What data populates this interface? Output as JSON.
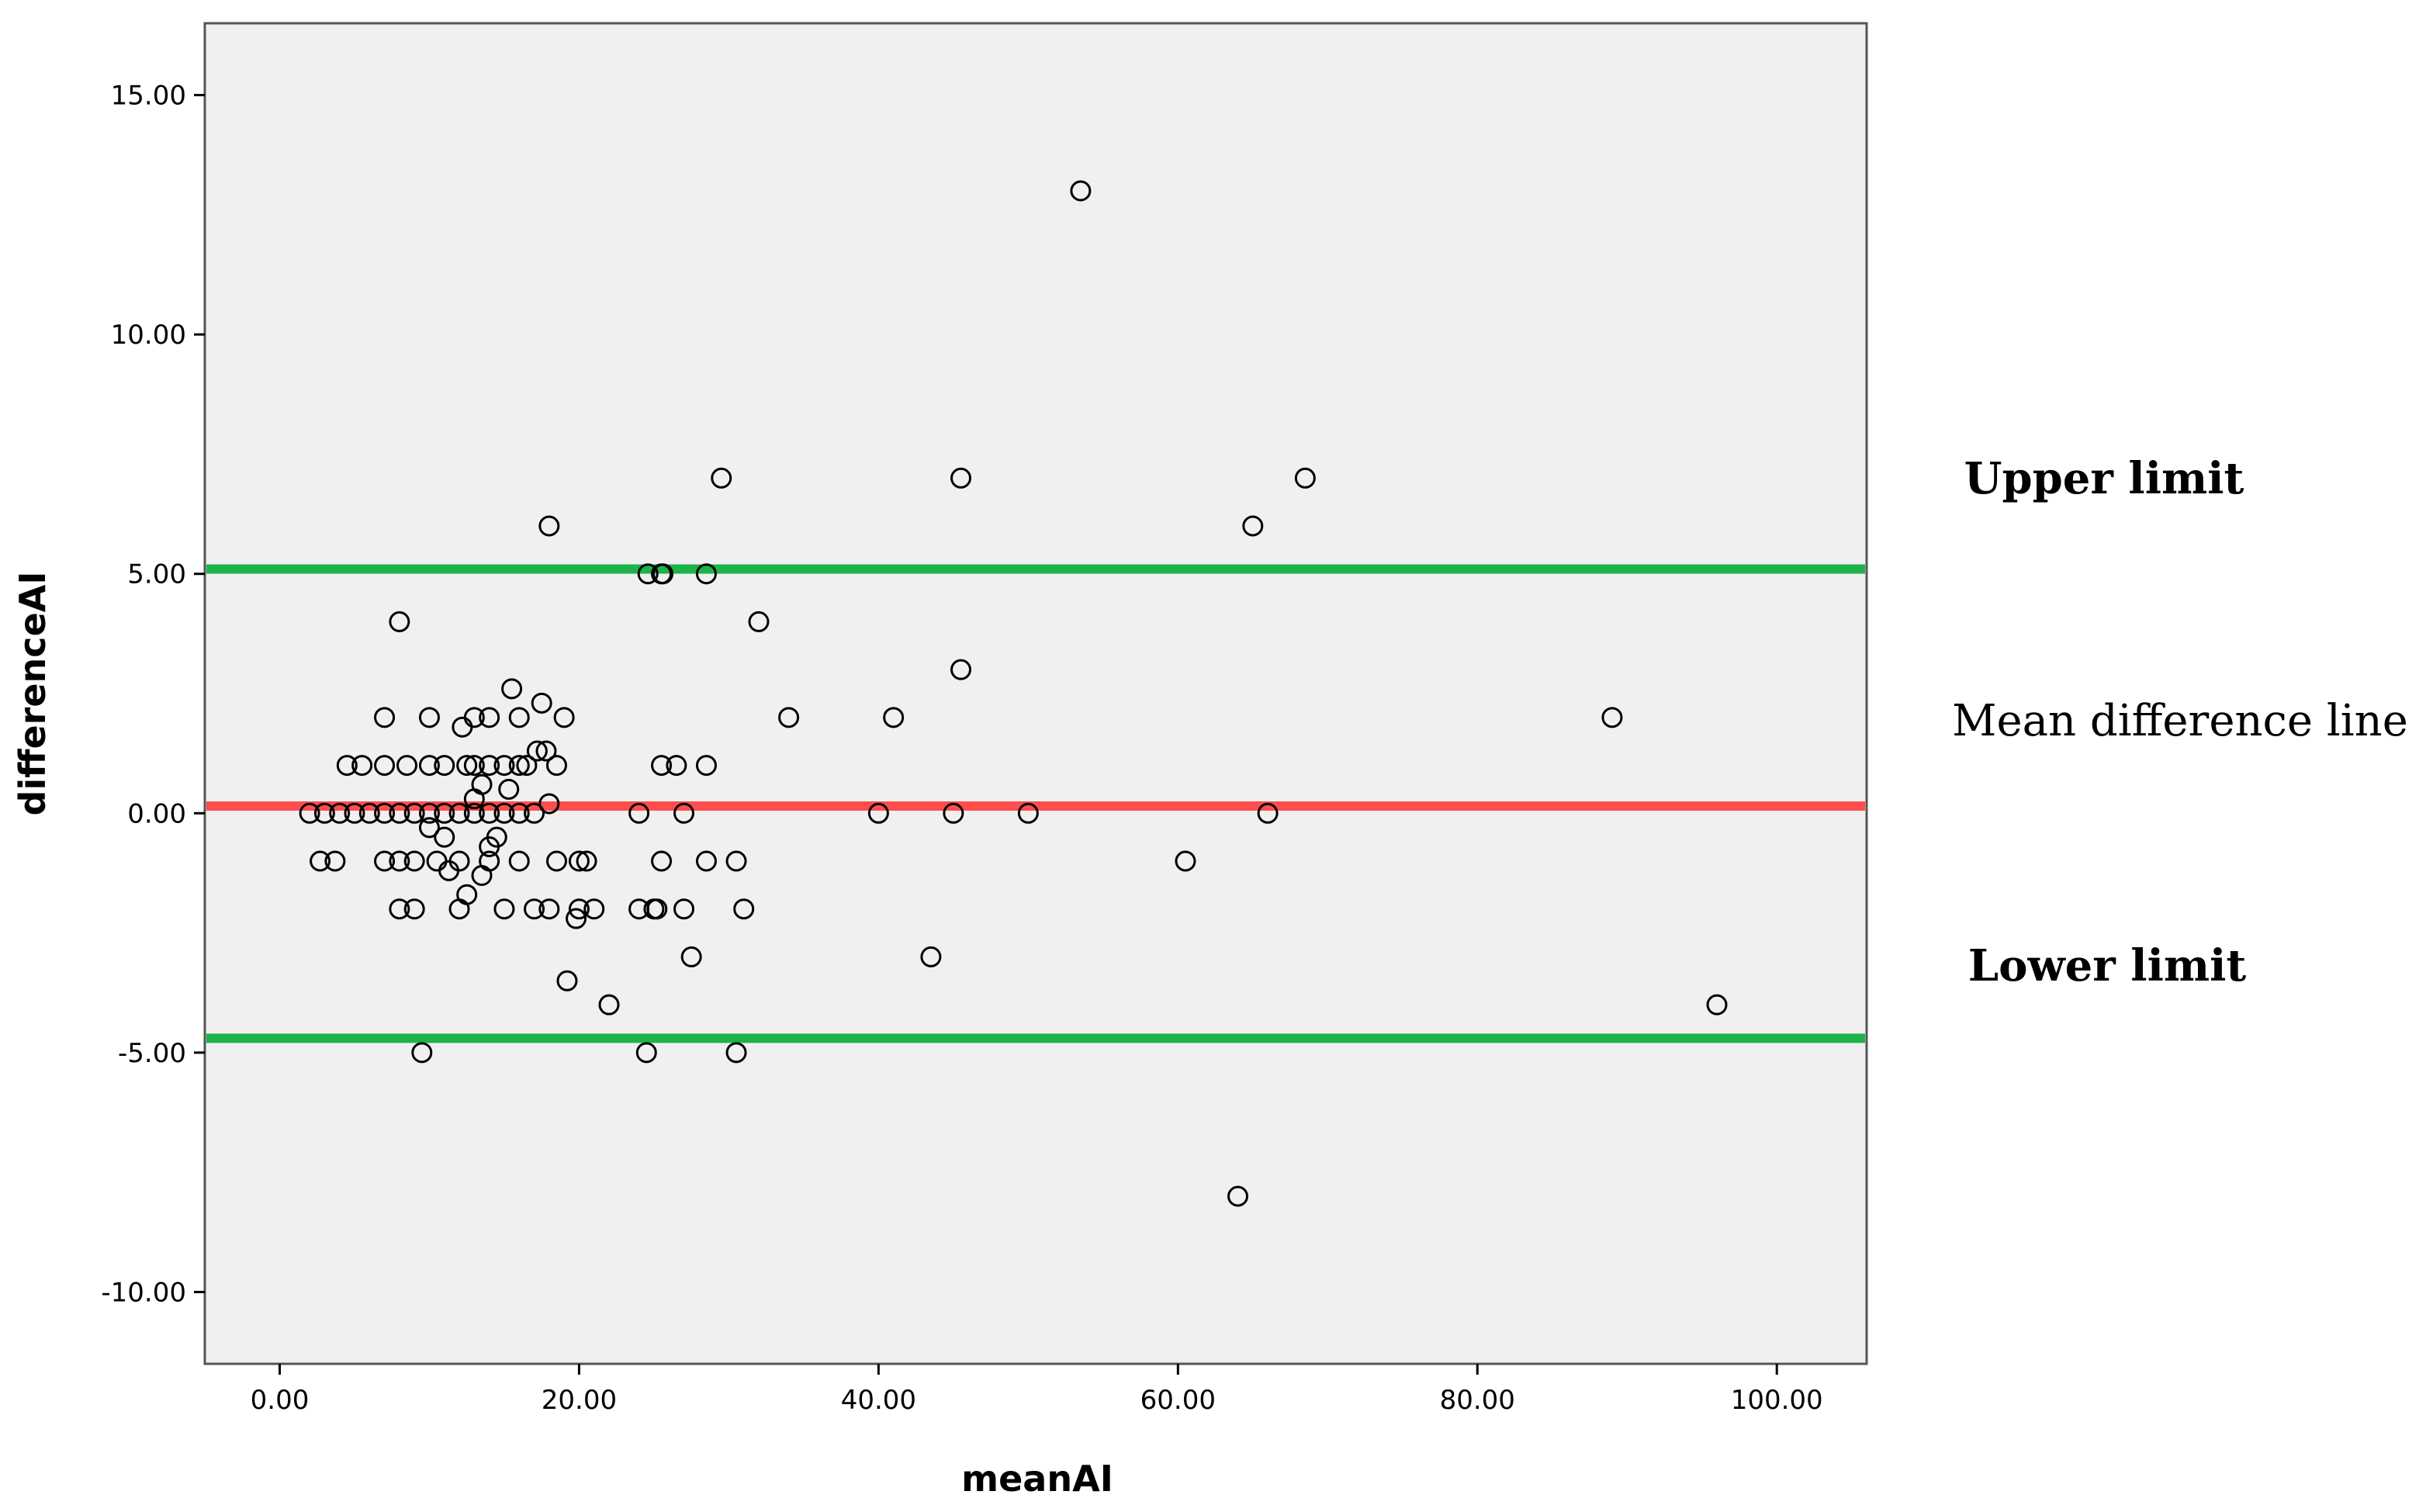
{
  "chart_data": {
    "type": "scatter",
    "title": "",
    "xlabel": "meanAI",
    "ylabel": "differenceAI",
    "xlim": [
      -5,
      106
    ],
    "ylim": [
      -11.5,
      16.5
    ],
    "xticks": [
      0,
      20,
      40,
      60,
      80,
      100
    ],
    "xtick_labels": [
      "0.00",
      "20.00",
      "40.00",
      "60.00",
      "80.00",
      "100.00"
    ],
    "yticks": [
      -10,
      -5,
      0,
      5,
      10,
      15
    ],
    "ytick_labels": [
      "-10.00",
      "-5.00",
      "0.00",
      "5.00",
      "10.00",
      "15.00"
    ],
    "grid": false,
    "background": "#f0f0f0",
    "marker": "open-circle",
    "reference_lines": [
      {
        "y": 5.1,
        "color": "#1db34a",
        "annotation": "Upper limit"
      },
      {
        "y": 0.15,
        "color": "#ff4d4d",
        "annotation": "Mean difference line"
      },
      {
        "y": -4.7,
        "color": "#1db34a",
        "annotation": "Lower limit"
      }
    ],
    "series": [
      {
        "x": [
          2,
          3,
          4,
          5,
          6,
          7,
          8,
          9,
          10,
          11,
          12,
          13,
          14,
          15,
          16,
          17,
          24,
          27,
          40,
          45,
          50,
          66,
          2.7,
          3.7,
          7,
          8,
          9,
          10.5,
          12,
          14,
          16,
          18.5,
          20,
          20.5,
          25.5,
          28.5,
          30.5,
          60.5,
          8,
          9,
          12,
          15,
          17,
          18,
          20,
          21,
          24,
          25,
          25.2,
          27,
          31,
          4.5,
          5.5,
          7,
          8.5,
          10,
          11,
          12.5,
          13,
          14,
          15,
          16,
          16.5,
          18.5,
          25.5,
          26.5,
          28.5,
          7,
          10,
          13,
          14,
          16,
          19,
          34,
          41,
          89,
          8,
          17.5,
          45.5,
          28.5,
          25.5,
          32,
          18,
          24.6,
          25.6,
          29.5,
          45.5,
          65,
          68.5,
          53.5,
          9.5,
          24.5,
          30.5,
          27.5,
          43.5,
          22,
          19.2,
          96,
          64,
          10,
          11,
          12.5,
          13.5,
          14,
          15.5,
          12.2,
          13.5,
          14.5,
          15.3,
          17.2,
          17.8,
          11.3,
          13,
          19.8,
          18
        ],
        "y": [
          0,
          0,
          0,
          0,
          0,
          0,
          0,
          0,
          0,
          0,
          0,
          0,
          0,
          0,
          0,
          0,
          0,
          0,
          0,
          0,
          0,
          0,
          -1,
          -1,
          -1,
          -1,
          -1,
          -1,
          -1,
          -1,
          -1,
          -1,
          -1,
          -1,
          -1,
          -1,
          -1,
          -1,
          -2,
          -2,
          -2,
          -2,
          -2,
          -2,
          -2,
          -2,
          -2,
          -2,
          -2,
          -2,
          -2,
          1,
          1,
          1,
          1,
          1,
          1,
          1,
          1,
          1,
          1,
          1,
          1,
          1,
          1,
          1,
          1,
          2,
          2,
          2,
          2,
          2,
          2,
          2,
          2,
          2,
          4,
          2.3,
          3,
          5,
          5,
          4,
          6,
          5,
          5,
          7,
          7,
          6,
          7,
          13,
          -5,
          -5,
          -5,
          -3,
          -3,
          -4,
          -3.5,
          -4,
          -8,
          -0.3,
          -0.5,
          -1.7,
          -1.3,
          -0.7,
          2.6,
          1.8,
          0.6,
          -0.5,
          0.5,
          1.3,
          1.3,
          -1.2,
          0.3,
          -2.2,
          0.2
        ]
      }
    ]
  }
}
